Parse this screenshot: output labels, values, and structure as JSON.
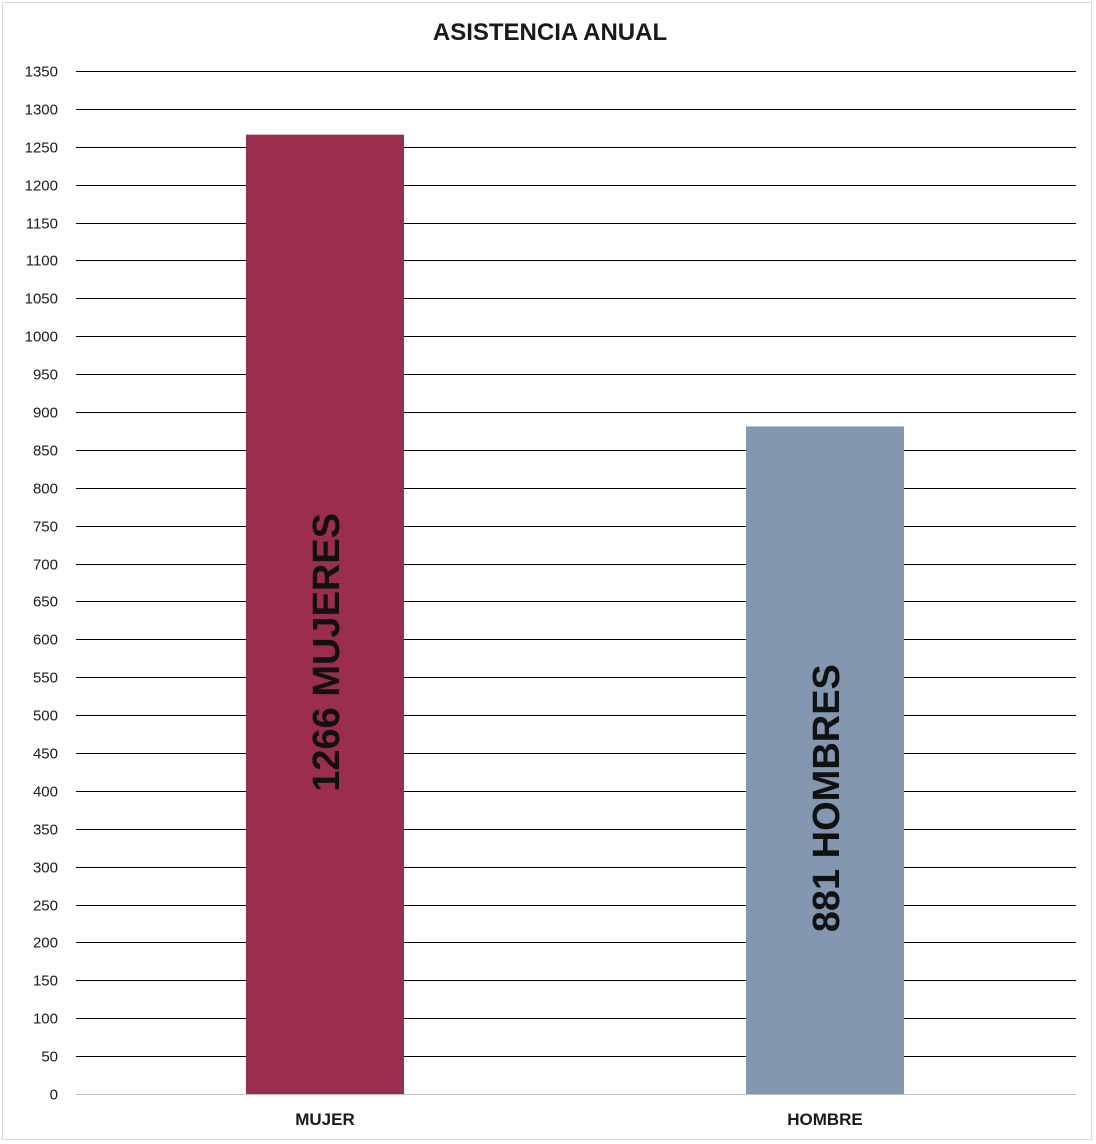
{
  "chart_data": {
    "type": "bar",
    "title": "ASISTENCIA ANUAL",
    "xlabel": "",
    "ylabel": "",
    "categories": [
      "MUJER",
      "HOMBRE"
    ],
    "values": [
      1266,
      881
    ],
    "data_labels": [
      "1266 MUJERES",
      "881 HOMBRES"
    ],
    "colors": [
      "#9B2D4D",
      "#8397B0"
    ],
    "ylim": [
      0,
      1350
    ],
    "ytick_step": 50,
    "grid": true,
    "legend": "none"
  }
}
